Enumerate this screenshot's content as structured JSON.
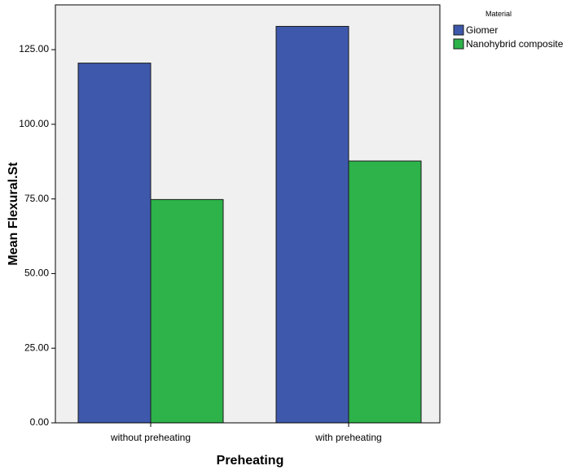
{
  "chart_data": {
    "type": "bar",
    "title": "",
    "xlabel": "Preheating",
    "ylabel": "Mean Flexural.St",
    "categories": [
      "without preheating",
      "with preheating"
    ],
    "series": [
      {
        "name": "Giomer",
        "values": [
          120.5,
          132.8
        ]
      },
      {
        "name": "Nanohybrid composite",
        "values": [
          74.8,
          87.7
        ]
      }
    ],
    "ylim": [
      0,
      140
    ],
    "yticks": [
      0,
      25,
      50,
      75,
      100,
      125
    ],
    "ytick_labels": [
      "0.00",
      "25.00",
      "50.00",
      "75.00",
      "100.00",
      "125.00"
    ],
    "legend": {
      "title": "Material",
      "position": "right",
      "entries": [
        "Giomer",
        "Nanohybrid composite"
      ]
    },
    "grid": false
  },
  "colors": {
    "plot_background": "#f0f0f0",
    "series": [
      "#3e58ac",
      "#2db34a"
    ],
    "bar_edge": "#1a1a1a",
    "axis": "#000000"
  }
}
